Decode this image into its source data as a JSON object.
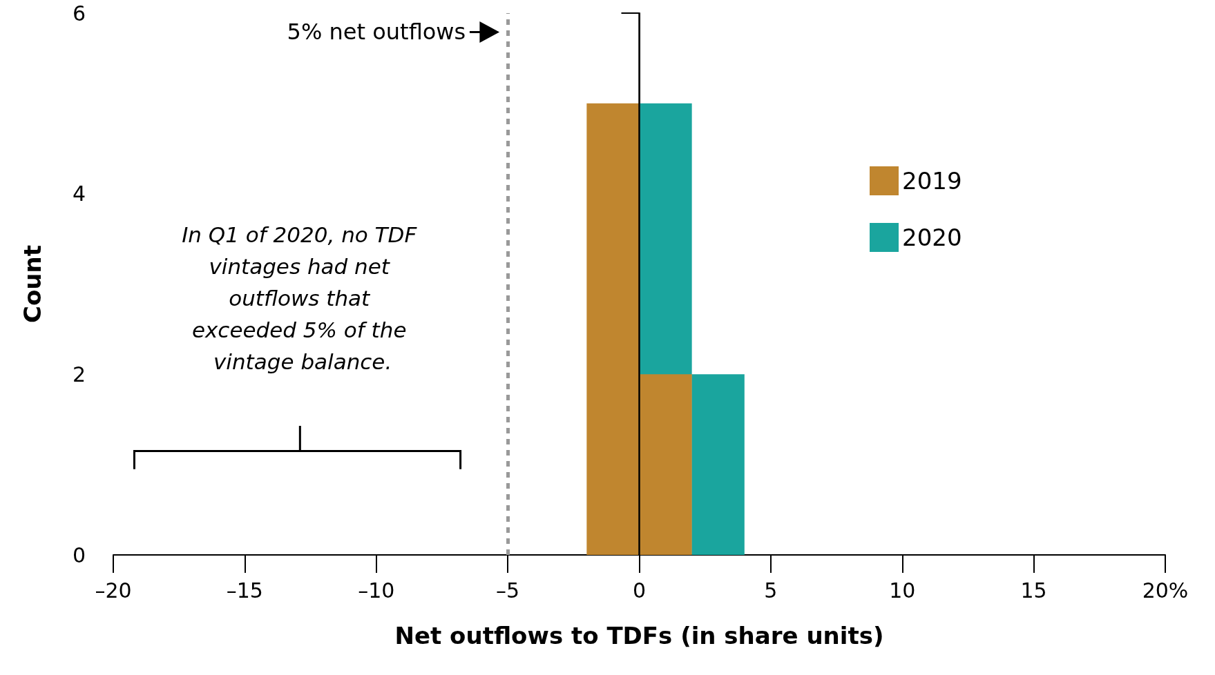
{
  "chart_data": {
    "type": "histogram",
    "xlabel": "Net outflows to TDFs (in share units)",
    "ylabel": "Count",
    "bins": [
      -2,
      0,
      2,
      4
    ],
    "series": [
      {
        "name": "2020",
        "color": "#1aa59e",
        "values": [
          0,
          5,
          2
        ]
      },
      {
        "name": "2019",
        "color": "#c0862f",
        "values": [
          5,
          2,
          0
        ]
      }
    ],
    "xlim": [
      -20,
      20
    ],
    "xticks": [
      {
        "value": -20,
        "label": "–20"
      },
      {
        "value": -15,
        "label": "–15"
      },
      {
        "value": -10,
        "label": "–10"
      },
      {
        "value": -5,
        "label": "–5"
      },
      0,
      5,
      10,
      15,
      {
        "value": 20,
        "label": "20%"
      }
    ],
    "ylim": [
      0,
      6
    ],
    "yticks": [
      0,
      2,
      4,
      6
    ],
    "ref_lines": [
      {
        "axis": "x",
        "value": -5,
        "label": "5% net outflows",
        "color": "#999999",
        "line_style": "dashed"
      },
      {
        "axis": "x",
        "value": 0,
        "label": null,
        "color": "#000000",
        "line_style": "solid"
      }
    ],
    "annotations": [
      "In Q1 of 2020, no TDF vintages had net outflows that exceeded 5% of the vintage balance."
    ],
    "legend": "right",
    "grid": false
  }
}
